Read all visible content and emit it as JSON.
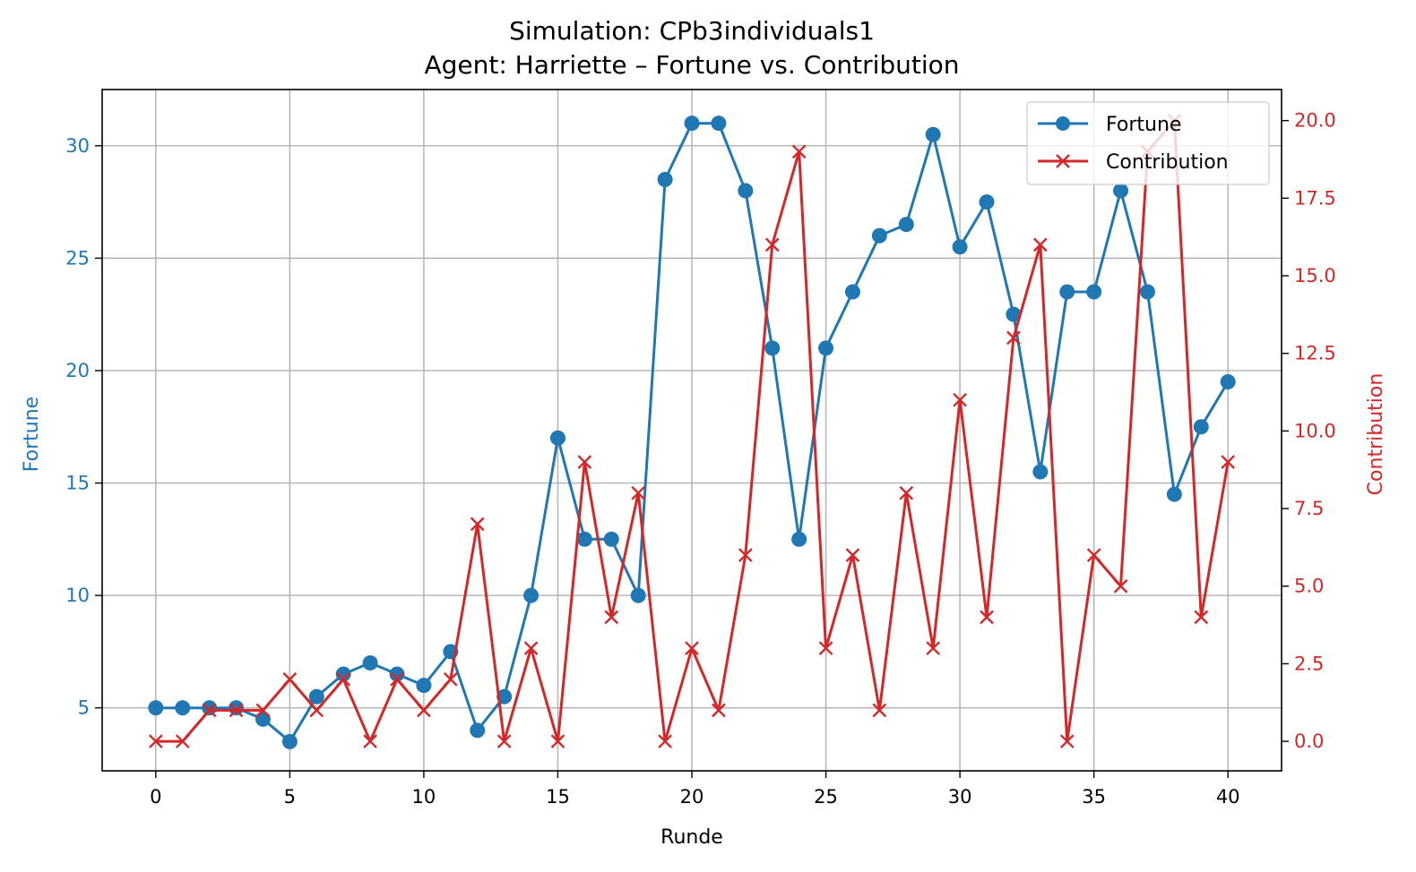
{
  "chart_data": {
    "type": "line",
    "title": "Simulation: CPb3individuals1",
    "subtitle": "Agent: Harriette – Fortune vs. Contribution",
    "xlabel": "Runde",
    "ylabel_left": "Fortune",
    "ylabel_right": "Contribution",
    "xlim": [
      -2,
      42
    ],
    "ylim_left": [
      2.2,
      32.5
    ],
    "ylim_right": [
      -0.95,
      21.0
    ],
    "x_ticks": [
      0,
      5,
      10,
      15,
      20,
      25,
      30,
      35,
      40
    ],
    "y_left_ticks": [
      5,
      10,
      15,
      20,
      25,
      30
    ],
    "y_right_ticks": [
      "0.0",
      "2.5",
      "5.0",
      "7.5",
      "10.0",
      "12.5",
      "15.0",
      "17.5",
      "20.0"
    ],
    "grid": true,
    "legend_position": "top-right",
    "x": [
      0,
      1,
      2,
      3,
      4,
      5,
      6,
      7,
      8,
      9,
      10,
      11,
      12,
      13,
      14,
      15,
      16,
      17,
      18,
      19,
      20,
      21,
      22,
      23,
      24,
      25,
      26,
      27,
      28,
      29,
      30,
      31,
      32,
      33,
      34,
      35,
      36,
      37,
      38,
      39,
      40
    ],
    "series": [
      {
        "name": "Fortune",
        "axis": "left",
        "color": "#1f77b4",
        "marker": "circle",
        "values": [
          5,
          5,
          5,
          5,
          4.5,
          3.5,
          5.5,
          6.5,
          7,
          6.5,
          6,
          7.5,
          4,
          5.5,
          10,
          17,
          12.5,
          12.5,
          10,
          28.5,
          31,
          31,
          28,
          21,
          12.5,
          21,
          23.5,
          26,
          26.5,
          30.5,
          25.5,
          27.5,
          22.5,
          15.5,
          23.5,
          23.5,
          28,
          23.5,
          14.5,
          17.5,
          19.5
        ]
      },
      {
        "name": "Contribution",
        "axis": "right",
        "color": "#d62728",
        "marker": "x",
        "values": [
          0,
          0,
          1,
          1,
          1,
          2,
          1,
          2,
          0,
          2,
          1,
          2,
          7,
          0,
          3,
          0,
          9,
          4,
          8,
          0,
          3,
          1,
          6,
          16,
          19,
          3,
          6,
          1,
          8,
          3,
          11,
          4,
          13,
          16,
          0,
          6,
          5,
          19,
          20,
          4,
          9
        ]
      }
    ]
  }
}
